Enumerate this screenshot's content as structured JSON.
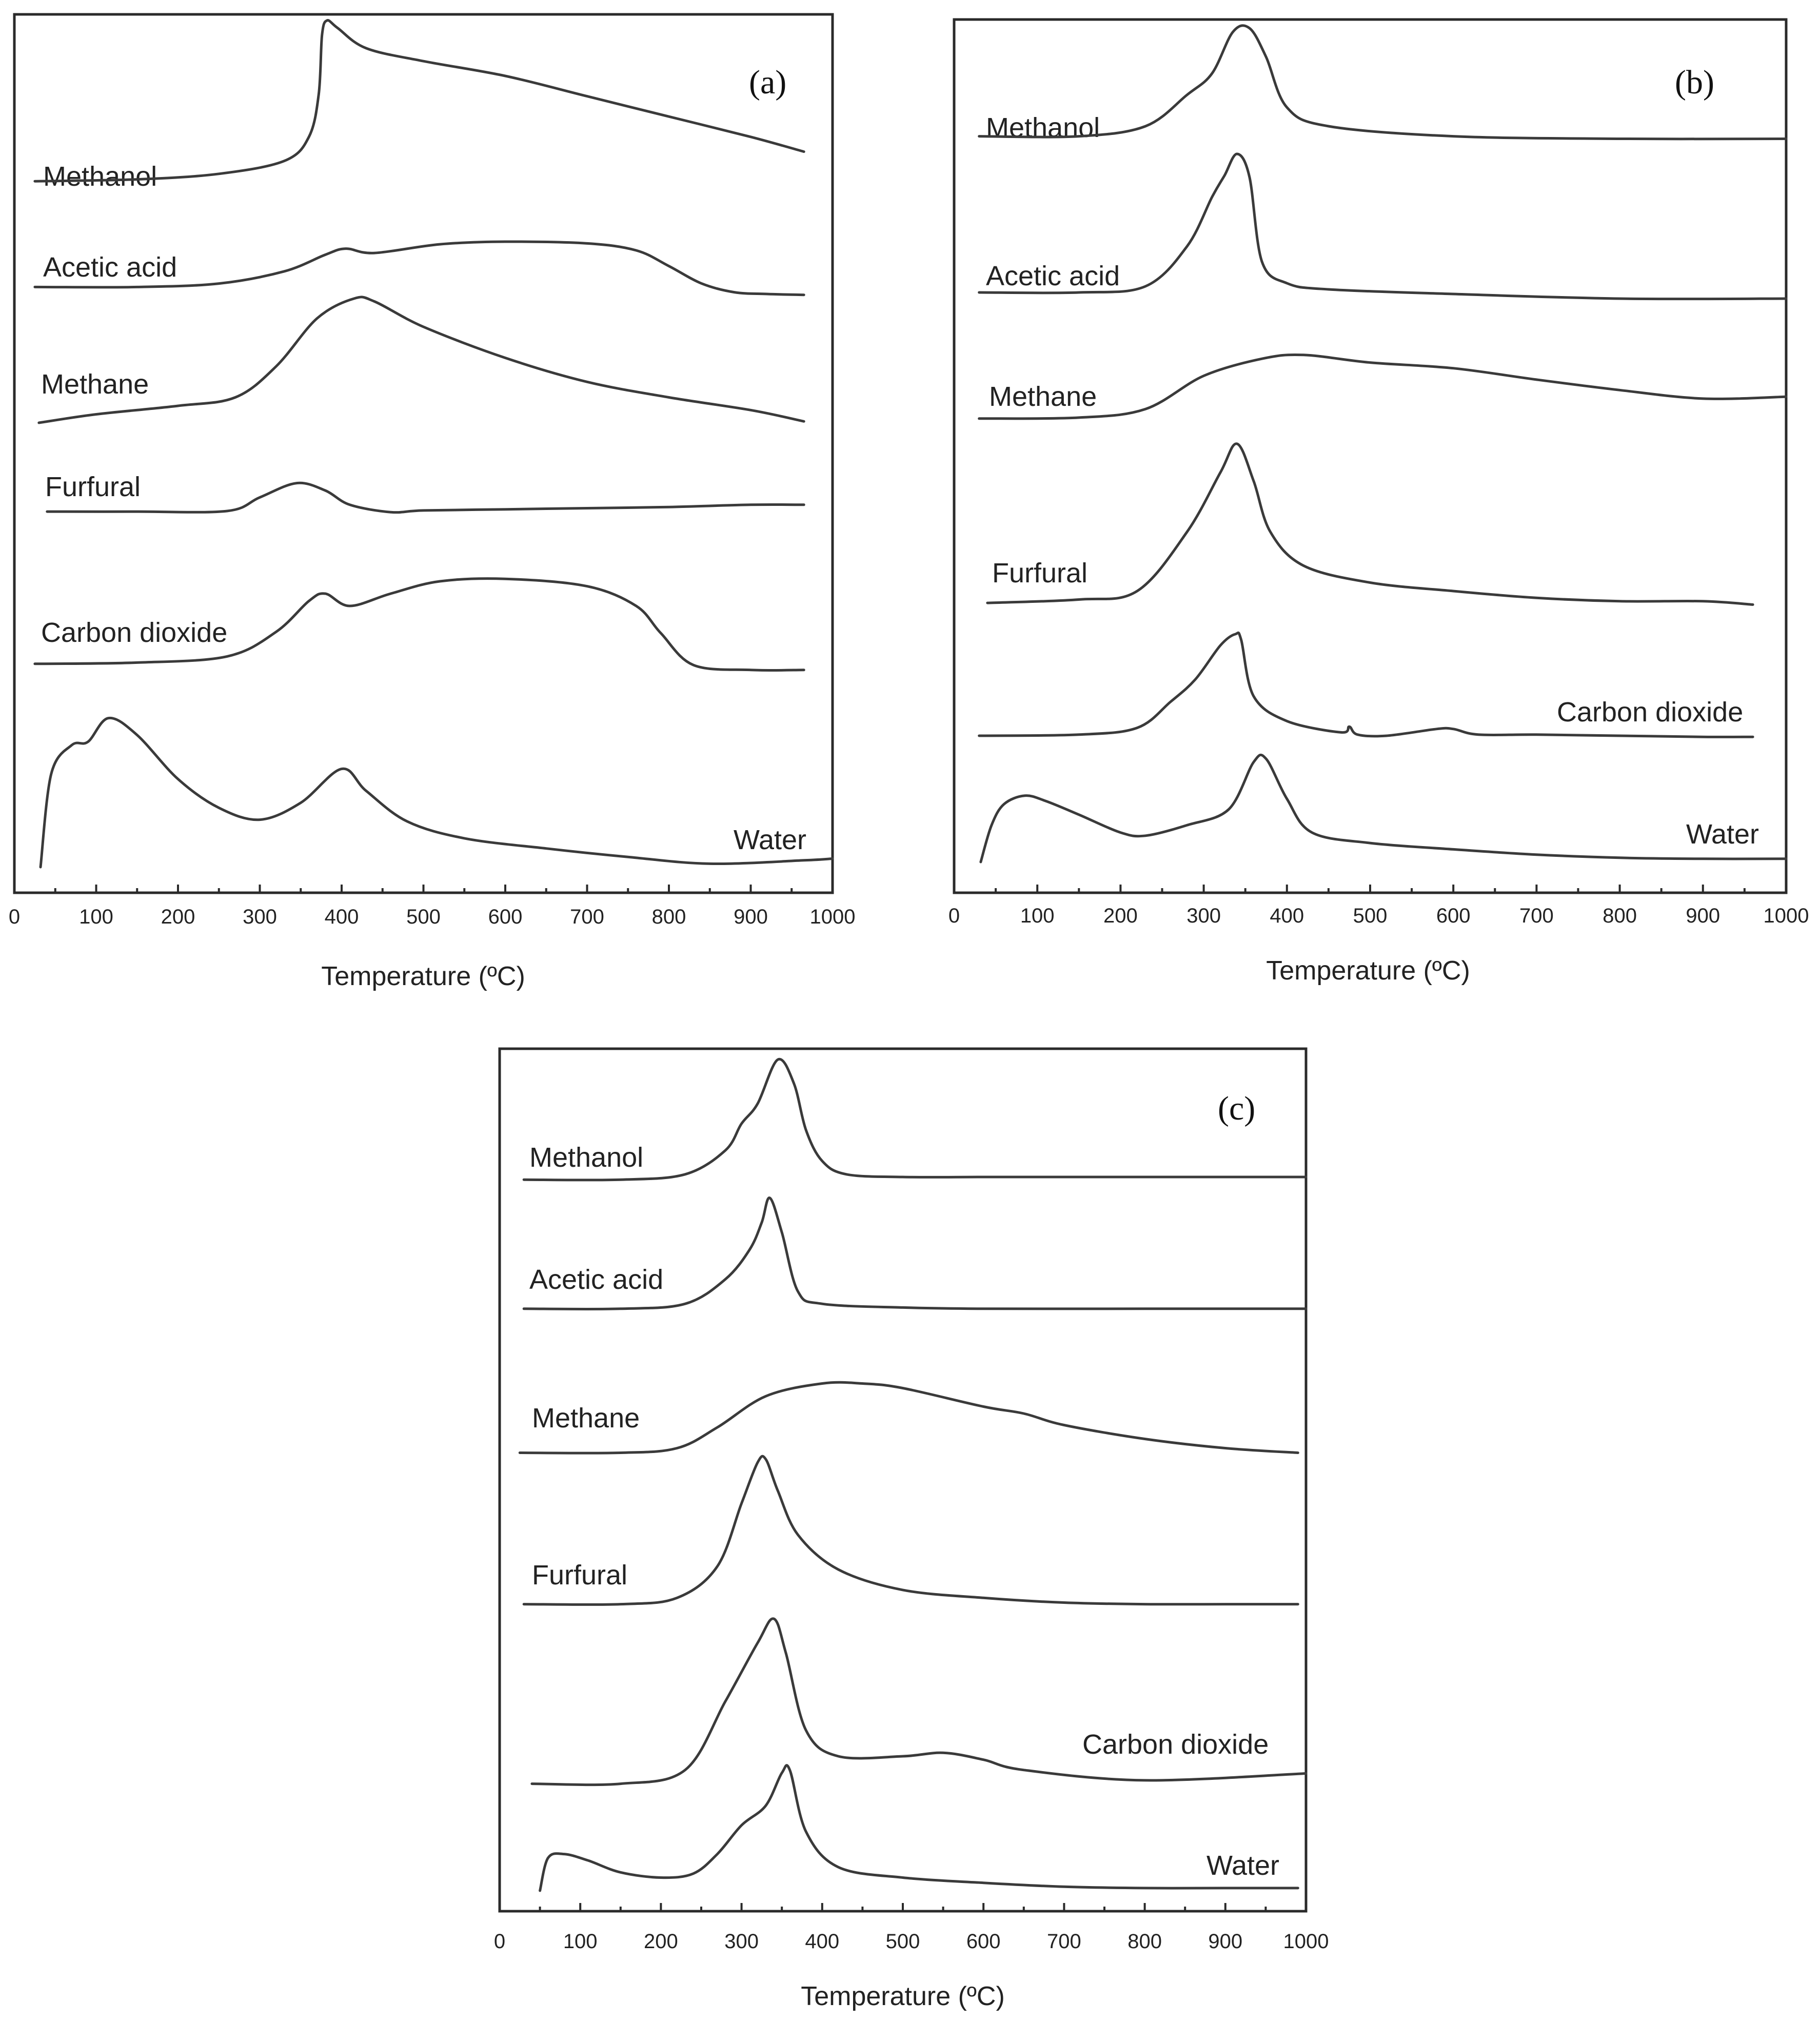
{
  "chart_data": [
    {
      "type": "line",
      "panel_label": "(a)",
      "xlabel": "Temperature (ºC)",
      "xlim": [
        0,
        1000
      ],
      "xticks": [
        "0",
        "100",
        "200",
        "300",
        "400",
        "500",
        "600",
        "700",
        "800",
        "900",
        "1000"
      ],
      "series": [
        {
          "name": "Methanol",
          "x": [
            25,
            150,
            250,
            330,
            360,
            372,
            376,
            382,
            395,
            430,
            500,
            600,
            700,
            800,
            900,
            965
          ],
          "y": [
            0.13,
            0.14,
            0.17,
            0.24,
            0.37,
            0.6,
            0.92,
            1.0,
            0.96,
            0.85,
            0.78,
            0.7,
            0.59,
            0.48,
            0.37,
            0.29
          ]
        },
        {
          "name": "Acetic acid",
          "x": [
            25,
            150,
            250,
            330,
            380,
            405,
            440,
            520,
            600,
            700,
            760,
            800,
            840,
            880,
            920,
            965
          ],
          "y": [
            0.18,
            0.18,
            0.22,
            0.36,
            0.55,
            0.62,
            0.57,
            0.67,
            0.7,
            0.68,
            0.6,
            0.42,
            0.22,
            0.12,
            0.1,
            0.09
          ]
        },
        {
          "name": "Methane",
          "x": [
            30,
            100,
            200,
            270,
            320,
            370,
            415,
            440,
            500,
            600,
            700,
            800,
            900,
            965
          ],
          "y": [
            0.04,
            0.1,
            0.16,
            0.22,
            0.44,
            0.78,
            0.92,
            0.9,
            0.72,
            0.5,
            0.33,
            0.22,
            0.13,
            0.05
          ]
        },
        {
          "name": "Furfural",
          "x": [
            40,
            150,
            260,
            300,
            345,
            380,
            410,
            460,
            500,
            600,
            700,
            800,
            900,
            965
          ],
          "y": [
            0.08,
            0.08,
            0.09,
            0.33,
            0.58,
            0.45,
            0.2,
            0.07,
            0.1,
            0.12,
            0.14,
            0.16,
            0.2,
            0.2
          ]
        },
        {
          "name": "Carbon dioxide",
          "x": [
            25,
            150,
            260,
            320,
            360,
            380,
            410,
            460,
            520,
            600,
            700,
            760,
            790,
            830,
            900,
            965
          ],
          "y": [
            0.13,
            0.14,
            0.19,
            0.39,
            0.64,
            0.7,
            0.6,
            0.7,
            0.8,
            0.82,
            0.76,
            0.6,
            0.38,
            0.12,
            0.08,
            0.08
          ]
        },
        {
          "name": "Water",
          "x": [
            32,
            45,
            70,
            90,
            115,
            150,
            200,
            250,
            300,
            350,
            400,
            430,
            480,
            550,
            650,
            750,
            850,
            965,
            1000
          ],
          "y": [
            0.0,
            0.55,
            0.72,
            0.74,
            0.88,
            0.78,
            0.52,
            0.35,
            0.28,
            0.38,
            0.58,
            0.45,
            0.27,
            0.17,
            0.11,
            0.06,
            0.02,
            0.04,
            0.05
          ]
        }
      ]
    },
    {
      "type": "line",
      "panel_label": "(b)",
      "xlabel": "Temperature (ºC)",
      "xlim": [
        0,
        1000
      ],
      "xticks": [
        "0",
        "100",
        "200",
        "300",
        "400",
        "500",
        "600",
        "700",
        "800",
        "900",
        "1000"
      ],
      "series": [
        {
          "name": "Methanol",
          "x": [
            30,
            150,
            230,
            280,
            310,
            335,
            355,
            375,
            400,
            450,
            600,
            800,
            1000
          ],
          "y": [
            0.12,
            0.12,
            0.2,
            0.45,
            0.62,
            0.95,
            0.98,
            0.75,
            0.35,
            0.2,
            0.12,
            0.1,
            0.1
          ]
        },
        {
          "name": "Acetic acid",
          "x": [
            30,
            150,
            230,
            280,
            310,
            325,
            340,
            355,
            370,
            400,
            450,
            600,
            800,
            1000
          ],
          "y": [
            0.1,
            0.1,
            0.14,
            0.4,
            0.72,
            0.86,
            1.0,
            0.85,
            0.3,
            0.16,
            0.12,
            0.09,
            0.06,
            0.06
          ]
        },
        {
          "name": "Methane",
          "x": [
            30,
            150,
            230,
            300,
            370,
            420,
            500,
            600,
            700,
            800,
            900,
            1000
          ],
          "y": [
            0.05,
            0.06,
            0.15,
            0.5,
            0.68,
            0.72,
            0.64,
            0.58,
            0.46,
            0.35,
            0.26,
            0.28
          ]
        },
        {
          "name": "Furfural",
          "x": [
            40,
            150,
            220,
            280,
            320,
            340,
            360,
            380,
            420,
            500,
            600,
            700,
            800,
            900,
            960
          ],
          "y": [
            0.03,
            0.05,
            0.1,
            0.45,
            0.8,
            0.97,
            0.75,
            0.45,
            0.25,
            0.15,
            0.1,
            0.06,
            0.04,
            0.04,
            0.02
          ]
        },
        {
          "name": "Carbon dioxide",
          "x": [
            30,
            150,
            220,
            260,
            290,
            320,
            338,
            345,
            360,
            400,
            465,
            475,
            485,
            520,
            580,
            600,
            630,
            700,
            800,
            900,
            960
          ],
          "y": [
            0.05,
            0.06,
            0.12,
            0.35,
            0.55,
            0.85,
            0.95,
            0.9,
            0.4,
            0.18,
            0.08,
            0.13,
            0.06,
            0.05,
            0.11,
            0.11,
            0.06,
            0.06,
            0.05,
            0.04,
            0.04
          ]
        },
        {
          "name": "Water",
          "x": [
            32,
            45,
            60,
            85,
            110,
            150,
            200,
            230,
            280,
            330,
            360,
            375,
            400,
            430,
            500,
            600,
            700,
            800,
            900,
            1000
          ],
          "y": [
            0.0,
            0.35,
            0.55,
            0.63,
            0.58,
            0.45,
            0.28,
            0.25,
            0.35,
            0.5,
            0.95,
            0.98,
            0.6,
            0.28,
            0.18,
            0.12,
            0.07,
            0.04,
            0.03,
            0.03
          ]
        }
      ]
    },
    {
      "type": "line",
      "panel_label": "(c)",
      "xlabel": "Temperature (ºC)",
      "xlim": [
        0,
        1000
      ],
      "xticks": [
        "0",
        "100",
        "200",
        "300",
        "400",
        "500",
        "600",
        "700",
        "800",
        "900",
        "1000"
      ],
      "series": [
        {
          "name": "Methanol",
          "x": [
            30,
            150,
            230,
            280,
            300,
            320,
            345,
            365,
            380,
            400,
            430,
            500,
            600,
            700,
            800,
            1000
          ],
          "y": [
            0.08,
            0.08,
            0.12,
            0.3,
            0.5,
            0.65,
            0.98,
            0.8,
            0.45,
            0.22,
            0.12,
            0.1,
            0.1,
            0.1,
            0.1,
            0.1
          ]
        },
        {
          "name": "Acetic acid",
          "x": [
            30,
            150,
            230,
            280,
            310,
            325,
            335,
            350,
            370,
            400,
            500,
            600,
            800,
            1000
          ],
          "y": [
            0.08,
            0.08,
            0.12,
            0.32,
            0.56,
            0.78,
            0.98,
            0.7,
            0.22,
            0.12,
            0.09,
            0.08,
            0.08,
            0.08
          ]
        },
        {
          "name": "Methane",
          "x": [
            25,
            150,
            220,
            270,
            330,
            400,
            450,
            500,
            600,
            650,
            700,
            800,
            900,
            990
          ],
          "y": [
            0.06,
            0.06,
            0.1,
            0.28,
            0.55,
            0.66,
            0.66,
            0.62,
            0.46,
            0.4,
            0.3,
            0.18,
            0.1,
            0.06
          ]
        },
        {
          "name": "Furfural",
          "x": [
            30,
            150,
            220,
            270,
            300,
            320,
            330,
            345,
            370,
            420,
            500,
            600,
            700,
            800,
            900,
            990
          ],
          "y": [
            0.06,
            0.06,
            0.1,
            0.3,
            0.7,
            0.96,
            0.98,
            0.78,
            0.5,
            0.28,
            0.15,
            0.1,
            0.07,
            0.06,
            0.06,
            0.06
          ]
        },
        {
          "name": "Carbon dioxide",
          "x": [
            40,
            150,
            230,
            280,
            320,
            340,
            355,
            380,
            420,
            500,
            550,
            600,
            650,
            800,
            1000
          ],
          "y": [
            0.04,
            0.04,
            0.12,
            0.52,
            0.86,
            1.0,
            0.8,
            0.35,
            0.2,
            0.2,
            0.22,
            0.18,
            0.12,
            0.06,
            0.1
          ]
        },
        {
          "name": "Water",
          "x": [
            50,
            60,
            80,
            110,
            150,
            200,
            240,
            270,
            300,
            330,
            350,
            360,
            380,
            420,
            500,
            600,
            700,
            800,
            900,
            990
          ],
          "y": [
            0.0,
            0.25,
            0.28,
            0.23,
            0.14,
            0.1,
            0.13,
            0.28,
            0.5,
            0.65,
            0.9,
            0.92,
            0.45,
            0.18,
            0.1,
            0.06,
            0.03,
            0.02,
            0.02,
            0.02
          ]
        }
      ]
    }
  ]
}
